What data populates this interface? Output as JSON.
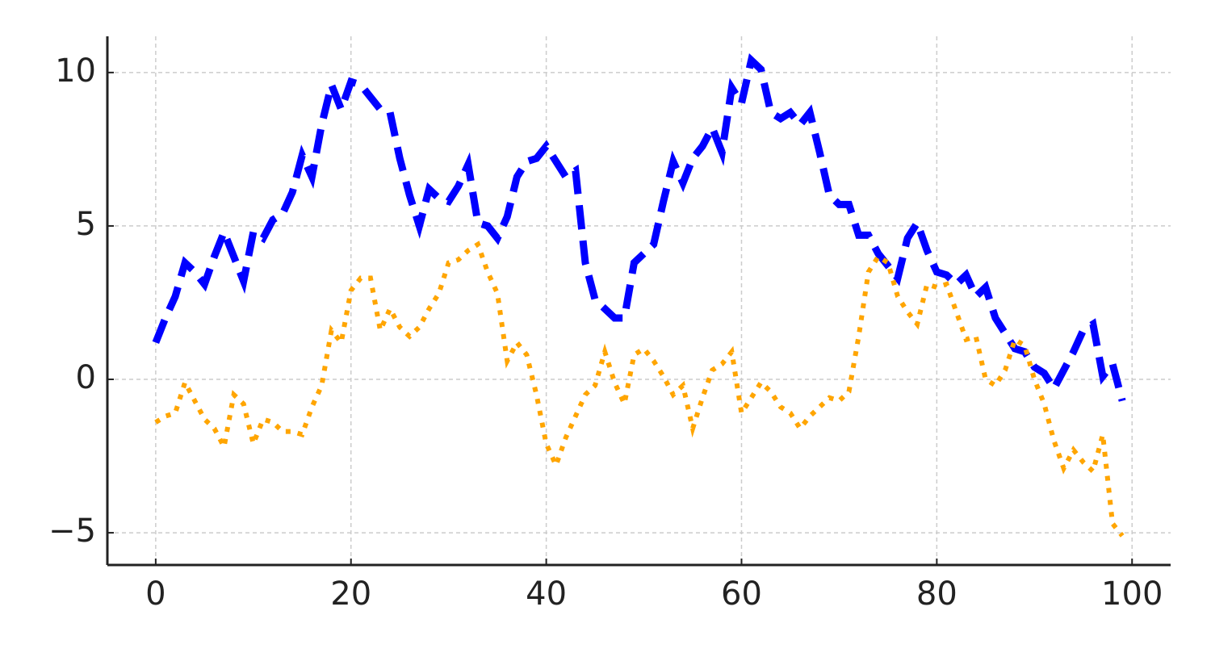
{
  "chart_data": {
    "type": "line",
    "x": [
      0,
      1,
      2,
      3,
      4,
      5,
      6,
      7,
      8,
      9,
      10,
      11,
      12,
      13,
      14,
      15,
      16,
      17,
      18,
      19,
      20,
      21,
      22,
      23,
      24,
      25,
      26,
      27,
      28,
      29,
      30,
      31,
      32,
      33,
      34,
      35,
      36,
      37,
      38,
      39,
      40,
      41,
      42,
      43,
      44,
      45,
      46,
      47,
      48,
      49,
      50,
      51,
      52,
      53,
      54,
      55,
      56,
      57,
      58,
      59,
      60,
      61,
      62,
      63,
      64,
      65,
      66,
      67,
      68,
      69,
      70,
      71,
      72,
      73,
      74,
      75,
      76,
      77,
      78,
      79,
      80,
      81,
      82,
      83,
      84,
      85,
      86,
      87,
      88,
      89,
      90,
      91,
      92,
      93,
      94,
      95,
      96,
      97,
      98,
      99
    ],
    "series": [
      {
        "color": "#0000ff",
        "linestyle": "dashed",
        "values": [
          1.2,
          2.0,
          2.7,
          3.8,
          3.5,
          3.1,
          4.0,
          4.8,
          4.0,
          3.2,
          4.8,
          4.6,
          5.2,
          5.4,
          6.1,
          7.3,
          6.6,
          8.3,
          9.6,
          8.8,
          9.7,
          9.6,
          9.2,
          8.8,
          8.7,
          7.2,
          6.0,
          5.0,
          6.2,
          5.9,
          5.8,
          6.3,
          7.0,
          5.1,
          5.0,
          4.6,
          5.3,
          6.6,
          7.1,
          7.2,
          7.6,
          7.1,
          6.6,
          6.8,
          3.8,
          2.6,
          2.3,
          2.0,
          2.0,
          3.8,
          4.1,
          4.4,
          5.8,
          7.1,
          6.4,
          7.2,
          7.6,
          8.2,
          7.4,
          9.5,
          9.0,
          10.4,
          10.1,
          8.7,
          8.5,
          8.7,
          8.3,
          8.7,
          7.4,
          6.0,
          5.7,
          5.7,
          4.7,
          4.7,
          4.1,
          3.7,
          3.3,
          4.6,
          5.1,
          4.2,
          3.5,
          3.4,
          3.1,
          3.4,
          2.7,
          3.0,
          2.0,
          1.5,
          1.0,
          0.9,
          0.4,
          0.2,
          -0.3,
          0.3,
          0.9,
          1.6,
          1.8,
          0.1,
          0.5,
          -0.7
        ]
      },
      {
        "color": "#ffa500",
        "linestyle": "dotted",
        "values": [
          -1.4,
          -1.2,
          -1.1,
          -0.1,
          -0.7,
          -1.3,
          -1.6,
          -2.2,
          -0.5,
          -0.8,
          -2.1,
          -1.3,
          -1.4,
          -1.7,
          -1.7,
          -1.8,
          -0.9,
          -0.2,
          1.6,
          1.2,
          2.9,
          3.3,
          3.3,
          1.6,
          2.3,
          1.7,
          1.4,
          1.7,
          2.3,
          2.8,
          3.8,
          3.9,
          4.2,
          4.4,
          3.5,
          2.8,
          0.6,
          1.2,
          0.8,
          -0.5,
          -2.1,
          -2.8,
          -1.9,
          -1.2,
          -0.5,
          -0.2,
          0.9,
          -0.1,
          -0.8,
          0.8,
          1.0,
          0.6,
          0.1,
          -0.5,
          -0.2,
          -1.6,
          -0.6,
          0.3,
          0.5,
          0.9,
          -1.1,
          -0.6,
          -0.1,
          -0.4,
          -0.9,
          -1.1,
          -1.6,
          -1.2,
          -0.9,
          -0.6,
          -0.7,
          -0.4,
          1.4,
          3.5,
          4.0,
          3.8,
          2.7,
          2.2,
          1.8,
          3.1,
          3.0,
          3.1,
          2.2,
          1.3,
          1.4,
          0.0,
          -0.2,
          0.3,
          1.3,
          1.1,
          0.0,
          -0.8,
          -2.0,
          -2.9,
          -2.3,
          -2.7,
          -3.0,
          -1.8,
          -4.7,
          -5.1
        ]
      }
    ],
    "xlim": [
      -4.95,
      103.95
    ],
    "ylim": [
      -6.05,
      11.18
    ],
    "xticks": [
      0,
      20,
      40,
      60,
      80,
      100
    ],
    "yticks": [
      {
        "value": -5,
        "label": "−5"
      },
      0,
      5,
      10
    ],
    "grid": true
  }
}
